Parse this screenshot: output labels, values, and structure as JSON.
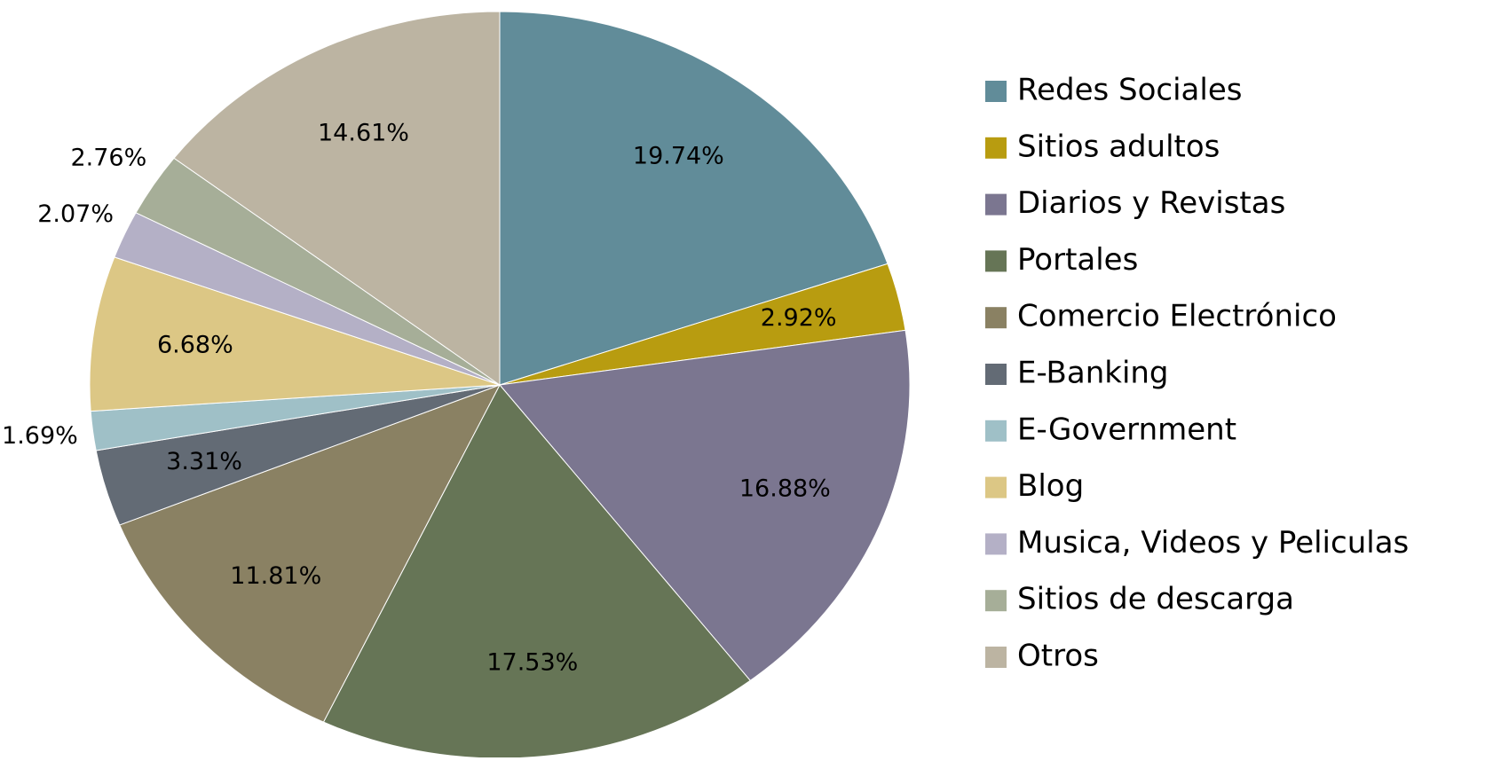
{
  "chart_data": {
    "type": "pie",
    "categories": [
      "Redes Sociales",
      "Sitios adultos",
      "Diarios y Revistas",
      "Portales",
      "Comercio Electrónico",
      "E-Banking",
      "E-Government",
      "Blog",
      "Musica, Videos y Peliculas",
      "Sitios de descarga",
      "Otros"
    ],
    "values": [
      19.74,
      2.92,
      16.88,
      17.53,
      11.81,
      3.31,
      1.69,
      6.68,
      2.07,
      2.76,
      14.61
    ],
    "value_labels": [
      "19.74%",
      "2.92%",
      "16.88%",
      "17.53%",
      "11.81%",
      "3.31%",
      "1.69%",
      "6.68%",
      "2.07%",
      "2.76%",
      "14.61%"
    ],
    "colors": [
      "#618c99",
      "#b89c10",
      "#7b7690",
      "#667556",
      "#8a8163",
      "#636b75",
      "#9fc0c7",
      "#dcc785",
      "#b4b0c6",
      "#a6ae98",
      "#bcb4a2"
    ],
    "legend": "right"
  }
}
